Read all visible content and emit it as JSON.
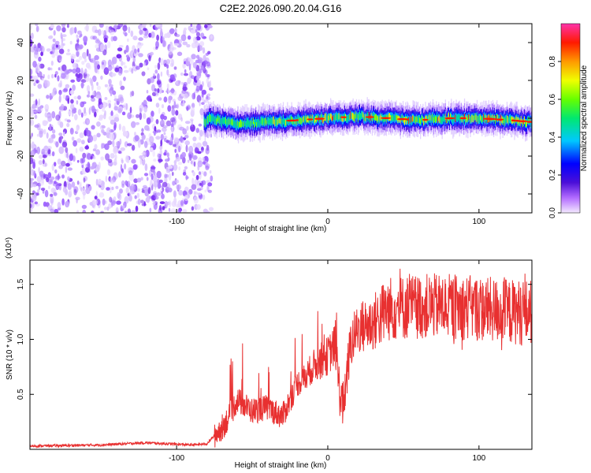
{
  "title": "C2E2.2026.090.20.04.G16",
  "chart_data": [
    {
      "type": "heatmap",
      "xlabel": "Height of straight line (km)",
      "ylabel": "Frequency (Hz)",
      "xlim": [
        -197,
        135
      ],
      "ylim": [
        -50,
        50
      ],
      "x_ticks": [
        -100,
        0,
        100
      ],
      "y_ticks": [
        -40,
        -20,
        0,
        20,
        40
      ],
      "colorbar": {
        "label": "Normalized spectral amplitude",
        "range": [
          0.0,
          1.0
        ],
        "ticks": [
          0.0,
          0.2,
          0.4,
          0.6,
          0.8
        ]
      },
      "description_points": {
        "noise_region_x": [
          -197,
          -80
        ],
        "signal_start_x": -82,
        "signal_center_hz": [
          {
            "x": -80,
            "y": 0
          },
          {
            "x": -60,
            "y": -3
          },
          {
            "x": -40,
            "y": -2
          },
          {
            "x": -20,
            "y": -1
          },
          {
            "x": 0,
            "y": 0
          },
          {
            "x": 20,
            "y": 1
          },
          {
            "x": 40,
            "y": 0
          },
          {
            "x": 60,
            "y": -1
          },
          {
            "x": 80,
            "y": 0
          },
          {
            "x": 100,
            "y": 0
          },
          {
            "x": 120,
            "y": -1
          },
          {
            "x": 135,
            "y": -2
          }
        ]
      }
    },
    {
      "type": "line",
      "xlabel": "Height of straight line (km)",
      "ylabel": "SNR (10 * v/v)",
      "y_scale_label": "(x10⁴)",
      "xlim": [
        -197,
        135
      ],
      "ylim": [
        0,
        1.72
      ],
      "x_ticks": [
        -100,
        0,
        100
      ],
      "y_ticks": [
        0.5,
        1.0,
        1.5
      ],
      "series": [
        {
          "name": "SNR",
          "color": "#e83030",
          "x": [
            -197,
            -150,
            -120,
            -90,
            -80,
            -70,
            -65,
            -60,
            -50,
            -40,
            -30,
            -20,
            -15,
            -10,
            0,
            5,
            8,
            10,
            12,
            15,
            20,
            30,
            40,
            60,
            80,
            100,
            120,
            135
          ],
          "y": [
            0.03,
            0.04,
            0.06,
            0.04,
            0.05,
            0.2,
            0.3,
            0.45,
            0.35,
            0.38,
            0.3,
            0.6,
            0.65,
            0.75,
            0.85,
            0.95,
            0.5,
            0.4,
            0.6,
            0.95,
            1.1,
            1.15,
            1.28,
            1.3,
            1.3,
            1.28,
            1.25,
            1.25
          ]
        }
      ]
    }
  ]
}
